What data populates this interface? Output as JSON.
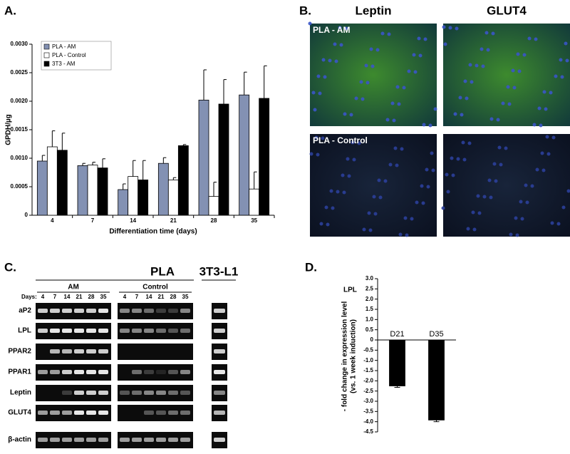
{
  "panels": {
    "a": "A.",
    "b": "B.",
    "c": "C.",
    "d": "D."
  },
  "chart_data": [
    {
      "type": "bar",
      "ylabel": "GPDH/µg",
      "xlabel": "Differentiation time (days)",
      "categories": [
        "4",
        "7",
        "14",
        "21",
        "28",
        "35"
      ],
      "series": [
        {
          "name": "PLA - AM",
          "color": "#8391b3",
          "values": [
            0.00095,
            0.00087,
            0.00045,
            0.00091,
            0.00202,
            0.00211
          ],
          "errors": [
            0.0001,
            4e-05,
            0.0001,
            0.0001,
            0.00053,
            0.0004
          ]
        },
        {
          "name": "PLA - Control",
          "color": "#ffffff",
          "values": [
            0.0012,
            0.00088,
            0.00068,
            0.00062,
            0.00033,
            0.00046
          ],
          "errors": [
            0.00028,
            5e-05,
            0.00028,
            4e-05,
            0.00025,
            0.0003
          ]
        },
        {
          "name": "3T3 - AM",
          "color": "#000000",
          "values": [
            0.00114,
            0.00083,
            0.00062,
            0.00122,
            0.00195,
            0.00205
          ],
          "errors": [
            0.0003,
            0.00016,
            0.00034,
            2e-05,
            0.00043,
            0.00057
          ]
        }
      ],
      "ylim": [
        0,
        0.003
      ],
      "yticks": [
        0,
        0.0005,
        {
          "value": 0.001,
          "label": "0.0010"
        },
        0.0015,
        {
          "value": 0.002,
          "label": "0.0020"
        },
        0.0025,
        {
          "value": 0.003,
          "label": "0.0030"
        }
      ],
      "legend": "upper left"
    },
    {
      "type": "bar",
      "title": "LPL",
      "ylabel": [
        "- fold change in expression level",
        "(vs. 1 week induction)"
      ],
      "categories": [
        "D21",
        "D35"
      ],
      "series": [
        {
          "color": "#000000",
          "values": [
            -2.25,
            -3.92
          ],
          "errors": [
            0.07,
            0.08
          ]
        }
      ],
      "ylim": [
        -4.5,
        3.0
      ],
      "yticks": [
        {
          "value": 3,
          "label": "3.0"
        },
        2.5,
        {
          "value": 2,
          "label": "2.0"
        },
        1.5,
        {
          "value": 1,
          "label": "1.0"
        },
        0.5,
        0,
        -0.5,
        {
          "value": -1,
          "label": "-1.0"
        },
        -1.5,
        {
          "value": -2,
          "label": "-2.0"
        },
        -2.5,
        {
          "value": -3,
          "label": "-3.0"
        },
        -3.5,
        {
          "value": -4,
          "label": "-4.0"
        },
        -4.5
      ]
    }
  ],
  "images": {
    "columns": [
      "Leptin",
      "GLUT4"
    ],
    "rows": [
      "PLA - AM",
      "PLA - Control"
    ]
  },
  "gel": {
    "group": "PLA",
    "reference": "3T3-L1",
    "conditions": [
      "AM",
      "Control"
    ],
    "days_label": "Days:",
    "days": [
      "4",
      "7",
      "14",
      "21",
      "28",
      "35"
    ],
    "genes": [
      "aP2",
      "LPL",
      "PPAR2",
      "PPAR1",
      "Leptin",
      "GLUT4",
      "β-actin"
    ]
  }
}
